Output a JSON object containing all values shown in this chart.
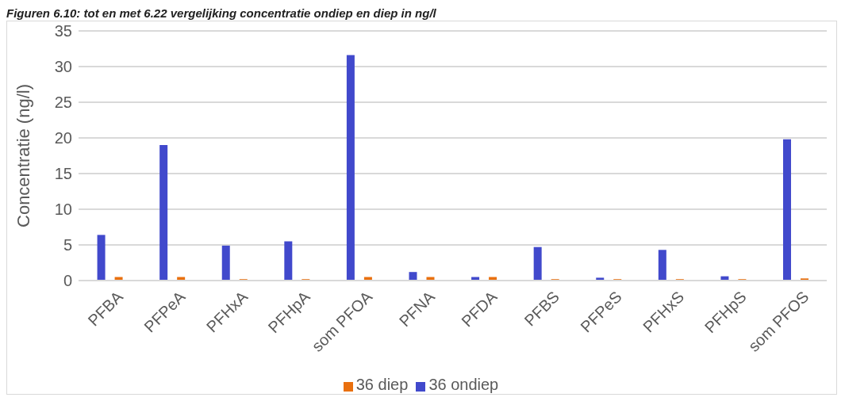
{
  "chart_data": {
    "type": "bar",
    "title": "Figuren 6.10: tot en met 6.22 vergelijking concentratie ondiep en diep in ng/l",
    "ylabel": "Concentratie (ng/l)",
    "categories": [
      "PFBA",
      "PFPeA",
      "PFHxA",
      "PFHpA",
      "som PFOA",
      "PFNA",
      "PFDA",
      "PFBS",
      "PFPeS",
      "PFHxS",
      "PFHpS",
      "som PFOS"
    ],
    "series": [
      {
        "name": "36 ondiep",
        "color": "#4149cc",
        "values": [
          6.4,
          19.0,
          4.9,
          5.5,
          31.6,
          1.2,
          0.5,
          4.7,
          0.4,
          4.3,
          0.6,
          19.8
        ]
      },
      {
        "name": "36 diep",
        "color": "#e9700f",
        "values": [
          0.5,
          0.5,
          0.2,
          0.2,
          0.5,
          0.5,
          0.5,
          0.2,
          0.2,
          0.2,
          0.2,
          0.3
        ]
      }
    ],
    "ylim": [
      0,
      35
    ],
    "yticks": [
      0,
      5,
      10,
      15,
      20,
      25,
      30,
      35
    ],
    "grid": "y",
    "legend": "bottom"
  }
}
